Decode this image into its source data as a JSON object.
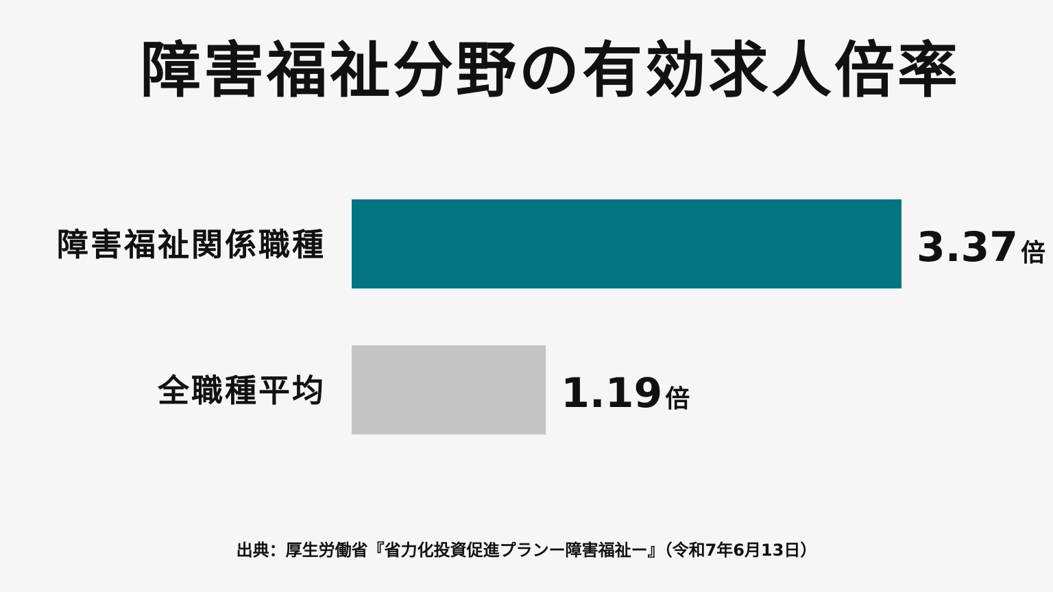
{
  "chart_data": {
    "type": "bar",
    "orientation": "horizontal",
    "title": "障害福祉分野の有効求人倍率",
    "categories": [
      "障害福祉関係職種",
      "全職種平均"
    ],
    "values": [
      3.37,
      1.19
    ],
    "value_labels": [
      "3.37",
      "1.19"
    ],
    "unit": "倍",
    "xlim": [
      0,
      3.37
    ],
    "grid": false,
    "colors": [
      "#037582",
      "#c4c4c4"
    ]
  },
  "source": "出典：厚生労働省『省力化投資促進プランー障害福祉ー』（令和7年6月13日）"
}
